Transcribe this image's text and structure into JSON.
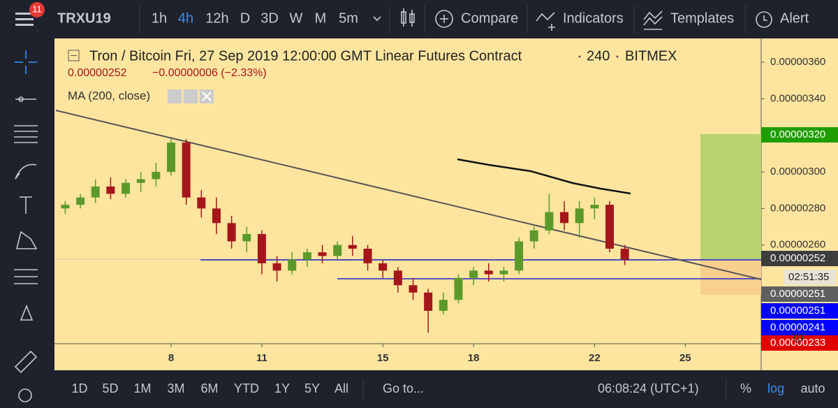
{
  "toolbar": {
    "badge": "11",
    "symbol": "TRXU19",
    "intervals": [
      "1h",
      "4h",
      "12h",
      "D",
      "3D",
      "W",
      "M",
      "5m"
    ],
    "compare": "Compare",
    "indicators": "Indicators",
    "templates": "Templates",
    "alert": "Alert"
  },
  "legend": {
    "title": "Tron / Bitcoin Fri, 27 Sep 2019 12:00:00 GMT Linear Futures Contract",
    "interval": "240",
    "exchange": "BITMEX",
    "last": "0.00000252",
    "change": "−0.00000006 (−2.33%)",
    "study": "MA (200, close)"
  },
  "chart_data": {
    "type": "candlestick",
    "up_color": "#5b9a2a",
    "down_color": "#a5161b",
    "x": [
      4.5,
      5,
      5.5,
      6,
      6.5,
      7,
      7.5,
      8,
      8.5,
      9,
      9.5,
      10,
      10.5,
      11,
      11.5,
      12,
      12.5,
      13,
      13.5,
      14,
      14.5,
      15,
      15.5,
      16,
      16.5,
      17,
      17.5,
      18,
      18.5,
      19,
      19.5,
      20,
      20.5,
      21,
      21.5,
      22,
      22.5,
      23
    ],
    "open": [
      2.8e-06,
      2.82e-06,
      2.86e-06,
      2.92e-06,
      2.88e-06,
      2.94e-06,
      2.96e-06,
      3e-06,
      3.16e-06,
      2.86e-06,
      2.8e-06,
      2.72e-06,
      2.62e-06,
      2.66e-06,
      2.5e-06,
      2.46e-06,
      2.52e-06,
      2.56e-06,
      2.54e-06,
      2.6e-06,
      2.58e-06,
      2.5e-06,
      2.46e-06,
      2.38e-06,
      2.34e-06,
      2.24e-06,
      2.3e-06,
      2.42e-06,
      2.46e-06,
      2.44e-06,
      2.46e-06,
      2.62e-06,
      2.68e-06,
      2.78e-06,
      2.72e-06,
      2.8e-06,
      2.82e-06,
      2.58e-06
    ],
    "high": [
      2.84e-06,
      2.88e-06,
      2.96e-06,
      2.97e-06,
      2.96e-06,
      3e-06,
      3.05e-06,
      3.18e-06,
      3.18e-06,
      2.9e-06,
      2.86e-06,
      2.76e-06,
      2.7e-06,
      2.68e-06,
      2.54e-06,
      2.56e-06,
      2.58e-06,
      2.6e-06,
      2.62e-06,
      2.65e-06,
      2.6e-06,
      2.52e-06,
      2.48e-06,
      2.42e-06,
      2.36e-06,
      2.34e-06,
      2.44e-06,
      2.48e-06,
      2.5e-06,
      2.48e-06,
      2.64e-06,
      2.7e-06,
      2.88e-06,
      2.84e-06,
      2.84e-06,
      2.86e-06,
      2.84e-06,
      2.6e-06
    ],
    "low": [
      2.77e-06,
      2.8e-06,
      2.83e-06,
      2.85e-06,
      2.86e-06,
      2.89e-06,
      2.92e-06,
      2.98e-06,
      2.82e-06,
      2.75e-06,
      2.66e-06,
      2.58e-06,
      2.56e-06,
      2.44e-06,
      2.4e-06,
      2.44e-06,
      2.48e-06,
      2.5e-06,
      2.52e-06,
      2.54e-06,
      2.46e-06,
      2.42e-06,
      2.34e-06,
      2.3e-06,
      2.12e-06,
      2.22e-06,
      2.28e-06,
      2.38e-06,
      2.4e-06,
      2.4e-06,
      2.44e-06,
      2.58e-06,
      2.66e-06,
      2.68e-06,
      2.64e-06,
      2.74e-06,
      2.56e-06,
      2.49e-06
    ],
    "close": [
      2.82e-06,
      2.86e-06,
      2.92e-06,
      2.88e-06,
      2.94e-06,
      2.96e-06,
      3e-06,
      3.16e-06,
      2.86e-06,
      2.8e-06,
      2.72e-06,
      2.62e-06,
      2.66e-06,
      2.5e-06,
      2.46e-06,
      2.52e-06,
      2.56e-06,
      2.54e-06,
      2.6e-06,
      2.58e-06,
      2.5e-06,
      2.46e-06,
      2.38e-06,
      2.34e-06,
      2.24e-06,
      2.3e-06,
      2.42e-06,
      2.46e-06,
      2.44e-06,
      2.46e-06,
      2.62e-06,
      2.68e-06,
      2.78e-06,
      2.72e-06,
      2.8e-06,
      2.82e-06,
      2.58e-06,
      2.52e-06
    ],
    "xlim": [
      4.19,
      27.51
    ],
    "xticks": [
      8,
      11,
      15,
      18,
      22,
      25
    ],
    "ylim": [
      2.06e-06,
      3.73e-06
    ],
    "yticks": [
      {
        "value": 2.6e-06,
        "label": "0.00000260"
      },
      {
        "value": 2.8e-06,
        "label": "0.00000280"
      },
      {
        "value": 3e-06,
        "label": "0.00000300"
      },
      {
        "value": 3.4e-06,
        "label": "0.00000340"
      },
      {
        "value": 3.6e-06,
        "label": "0.00000360"
      }
    ],
    "badges": [
      "0.00000320",
      "0.00000252",
      "02:51:35",
      "0.00000251",
      "0.00000251",
      "0.00000241",
      "0.00000233"
    ]
  },
  "bottom": {
    "ranges": [
      "1D",
      "5D",
      "1M",
      "3M",
      "6M",
      "YTD",
      "1Y",
      "5Y",
      "All"
    ],
    "goto": "Go to...",
    "time": "06:08:24 (UTC+1)",
    "percent": "%",
    "log": "log",
    "auto": "auto"
  }
}
